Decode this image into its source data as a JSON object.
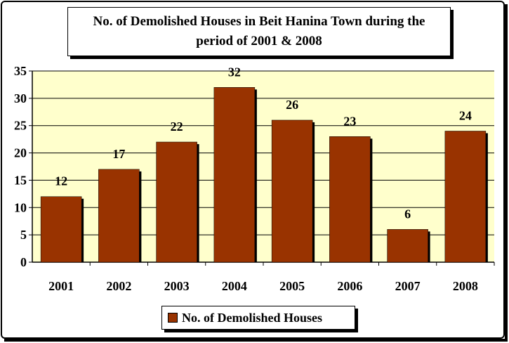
{
  "chart_data": {
    "type": "bar",
    "title": "No. of Demolished Houses in Beit Hanina Town during the period of 2001 & 2008",
    "categories": [
      "2001",
      "2002",
      "2003",
      "2004",
      "2005",
      "2006",
      "2007",
      "2008"
    ],
    "series": [
      {
        "name": "No. of Demolished Houses",
        "values": [
          12,
          17,
          22,
          32,
          26,
          23,
          6,
          24
        ]
      }
    ],
    "data_labels": [
      "12",
      "17",
      "22",
      "32",
      "26",
      "23",
      "6",
      "24"
    ],
    "y_ticks": [
      "0",
      "5",
      "10",
      "15",
      "20",
      "25",
      "30",
      "35"
    ],
    "ylim": [
      0,
      35
    ],
    "grid": true,
    "legend_position": "bottom",
    "colors": {
      "bar": "#993300",
      "plot_background": "#ffffcc",
      "gridline": "#000000"
    }
  }
}
